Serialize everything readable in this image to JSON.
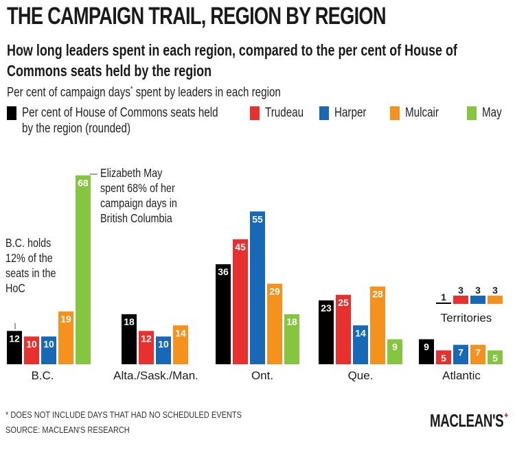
{
  "title": "THE CAMPAIGN TRAIL, REGION BY REGION",
  "subtitle": "How long leaders spent in each region, compared to the per cent of House of Commons seats held by the region",
  "intro": "Per cent of campaign days",
  "intro_mark": "*",
  "intro_rest": " spent by leaders in each region",
  "legend": [
    {
      "label": "Per cent of House of Commons seats held by the region (rounded)",
      "color": "#000000"
    },
    {
      "label": "Trudeau",
      "color": "#e8302e"
    },
    {
      "label": "Harper",
      "color": "#1769b8"
    },
    {
      "label": "Mulcair",
      "color": "#f5921e"
    },
    {
      "label": "May",
      "color": "#86c540"
    }
  ],
  "annotations": {
    "bc": [
      "B.C. holds",
      "12% of the",
      "seats in the",
      "HoC"
    ],
    "may": [
      "Elizabeth May",
      "spent 68% of her",
      "campaign days in",
      "British Columbia"
    ]
  },
  "chart_data": {
    "type": "bar",
    "categories": [
      "B.C.",
      "Alta./Sask./Man.",
      "Ont.",
      "Que.",
      "Territories",
      "Atlantic"
    ],
    "series": [
      {
        "name": "Per cent of House of Commons seats held by the region (rounded)",
        "color": "#000000",
        "values": [
          12,
          18,
          36,
          23,
          1,
          9
        ]
      },
      {
        "name": "Trudeau",
        "color": "#e8302e",
        "values": [
          10,
          12,
          45,
          25,
          3,
          5
        ]
      },
      {
        "name": "Harper",
        "color": "#1769b8",
        "values": [
          10,
          10,
          55,
          14,
          3,
          7
        ]
      },
      {
        "name": "Mulcair",
        "color": "#f5921e",
        "values": [
          19,
          14,
          29,
          28,
          3,
          7
        ]
      },
      {
        "name": "May",
        "color": "#86c540",
        "values": [
          68,
          null,
          18,
          9,
          null,
          5
        ]
      }
    ],
    "xlabel": "",
    "ylabel": "",
    "grid": false
  },
  "footnote": "* DOES NOT INCLUDE DAYS THAT HAD NO SCHEDULED EVENTS",
  "source": "SOURCE: MACLEAN'S RESEARCH",
  "brand": "MACLEAN'S",
  "brand_mark": "✦"
}
